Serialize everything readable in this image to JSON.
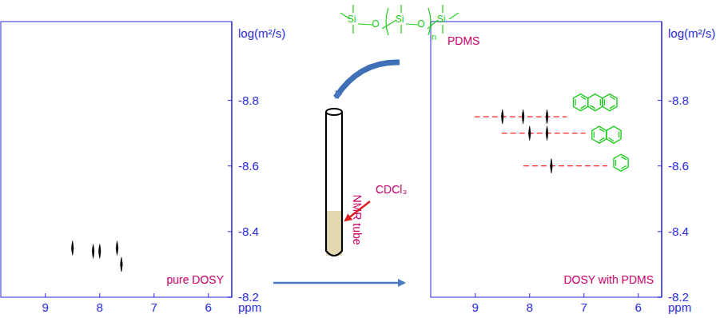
{
  "chart_data": [
    {
      "type": "scatter",
      "annotation": "pure DOSY",
      "x_label": "ppm",
      "y_label": "log(m²/s)",
      "xlim": [
        9.82,
        5.57
      ],
      "ylim": [
        -8.2,
        -9.04
      ],
      "xticks": [
        9,
        8,
        7,
        6
      ],
      "yticks": [
        -8.8,
        -8.6,
        -8.4,
        -8.2
      ],
      "marker": "peak",
      "series": [
        {
          "color": "#000000",
          "x": [
            8.5,
            8.12,
            8.0,
            7.68,
            7.6
          ],
          "values": [
            -8.35,
            -8.34,
            -8.34,
            -8.35,
            -8.3
          ]
        }
      ]
    },
    {
      "type": "scatter",
      "annotation": "DOSY with PDMS",
      "x_label": "ppm",
      "y_label": "log(m²/s)",
      "xlim": [
        9.82,
        5.57
      ],
      "ylim": [
        -8.2,
        -9.04
      ],
      "xticks": [
        9,
        8,
        7,
        6
      ],
      "yticks": [
        -8.8,
        -8.6,
        -8.4,
        -8.2
      ],
      "marker": "peak",
      "series": [
        {
          "color": "#000000",
          "line_style": "dashed",
          "x": [
            8.5,
            8.12,
            7.68
          ],
          "values": [
            -8.75,
            -8.75,
            -8.75
          ]
        },
        {
          "color": "#000000",
          "line_style": "dashed",
          "x": [
            8.0,
            7.68
          ],
          "values": [
            -8.7,
            -8.7
          ]
        },
        {
          "color": "#000000",
          "line_style": "dashed",
          "x": [
            7.6
          ],
          "values": [
            -8.6
          ]
        }
      ]
    }
  ],
  "diagram": {
    "pdms": {
      "label": "PDMS",
      "atoms": [
        "Si",
        "O",
        "Si",
        "O",
        "Si"
      ],
      "repeat": "n"
    },
    "tube": {
      "label": "NMR tube"
    },
    "solvent": {
      "label": "CDCl₃"
    }
  }
}
